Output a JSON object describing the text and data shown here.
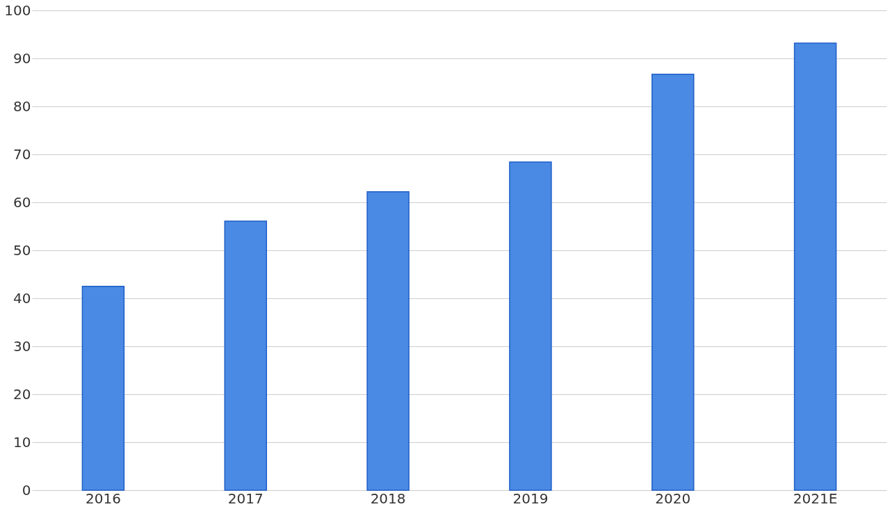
{
  "chart_data": {
    "type": "bar",
    "categories": [
      "2016",
      "2017",
      "2018",
      "2019",
      "2020",
      "2021E"
    ],
    "values": [
      42.5,
      56.1,
      62.2,
      68.4,
      86.7,
      93.2
    ],
    "color": "#4a8ae4",
    "ylim": [
      0,
      100
    ],
    "yticks": [
      0,
      10,
      20,
      30,
      40,
      50,
      60,
      70,
      80,
      90,
      100
    ],
    "grid": "y"
  }
}
